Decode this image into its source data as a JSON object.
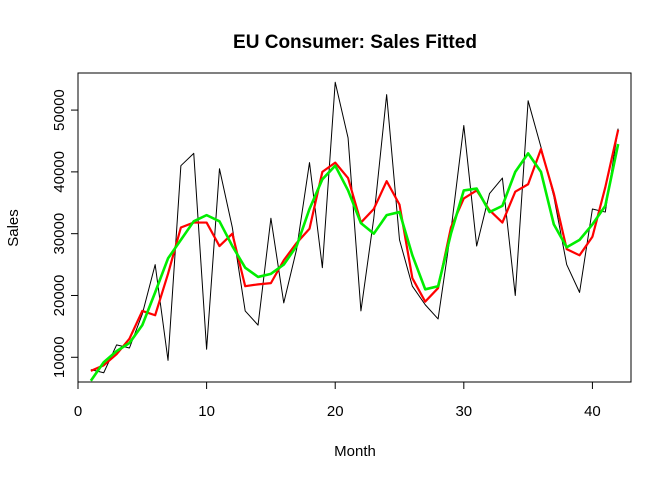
{
  "chart_data": {
    "type": "line",
    "title": "EU Consumer: Sales Fitted",
    "xlabel": "Month",
    "ylabel": "Sales",
    "xlim": [
      0,
      43
    ],
    "ylim": [
      6000,
      56000
    ],
    "xticks": [
      0,
      10,
      20,
      30,
      40
    ],
    "yticks": [
      10000,
      20000,
      30000,
      40000,
      50000
    ],
    "grid": false,
    "legend": "none",
    "series": [
      {
        "color": "#000000",
        "line_width": 1,
        "x": [
          1,
          2,
          3,
          4,
          5,
          6,
          7,
          8,
          9,
          10,
          11,
          12,
          13,
          14,
          15,
          16,
          17,
          18,
          19,
          20,
          21,
          22,
          23,
          24,
          25,
          26,
          27,
          28,
          29,
          30,
          31,
          32,
          33,
          34,
          35,
          36,
          37,
          38,
          39,
          40,
          41,
          42
        ],
        "values": [
          8000,
          7500,
          12000,
          11500,
          17000,
          25000,
          9500,
          41000,
          43000,
          11300,
          40500,
          31000,
          17500,
          15200,
          32500,
          18800,
          27500,
          41500,
          24500,
          54500,
          45500,
          17500,
          32500,
          52500,
          29000,
          21500,
          18500,
          16200,
          30500,
          47500,
          28000,
          36500,
          39000,
          20000,
          51500,
          44000,
          36000,
          25000,
          20500,
          34000,
          33500,
          47000
        ]
      },
      {
        "color": "#ff0000",
        "line_width": 2.2,
        "x": [
          1,
          2,
          3,
          4,
          5,
          6,
          7,
          8,
          9,
          10,
          11,
          12,
          13,
          14,
          15,
          16,
          17,
          18,
          19,
          20,
          21,
          22,
          23,
          24,
          25,
          26,
          27,
          28,
          29,
          30,
          31,
          32,
          33,
          34,
          35,
          36,
          37,
          38,
          39,
          40,
          41,
          42
        ],
        "values": [
          7800,
          8700,
          10500,
          13000,
          17500,
          16800,
          23500,
          31000,
          31800,
          31800,
          28000,
          30000,
          21500,
          21800,
          22000,
          25700,
          28500,
          30800,
          40000,
          41500,
          39000,
          31800,
          34000,
          38500,
          34700,
          22800,
          19000,
          21200,
          31000,
          35700,
          37000,
          33800,
          31800,
          36800,
          38000,
          43700,
          36500,
          27500,
          26500,
          29500,
          37500,
          46800
        ]
      },
      {
        "color": "#00ee00",
        "line_width": 2.6,
        "x": [
          1,
          2,
          3,
          4,
          5,
          6,
          7,
          8,
          9,
          10,
          11,
          12,
          13,
          14,
          15,
          16,
          17,
          18,
          19,
          20,
          21,
          22,
          23,
          24,
          25,
          26,
          27,
          28,
          29,
          30,
          31,
          32,
          33,
          34,
          35,
          36,
          37,
          38,
          39,
          40,
          41,
          42
        ],
        "values": [
          6200,
          9200,
          11000,
          12300,
          15200,
          20500,
          26000,
          29000,
          32000,
          33000,
          32000,
          28000,
          24500,
          23000,
          23500,
          25000,
          28000,
          34000,
          38800,
          41000,
          37000,
          31700,
          30000,
          33000,
          33500,
          26500,
          21000,
          21500,
          30000,
          37000,
          37300,
          33500,
          34500,
          40000,
          43000,
          40000,
          31500,
          27800,
          29000,
          31500,
          34500,
          44500
        ]
      }
    ]
  }
}
